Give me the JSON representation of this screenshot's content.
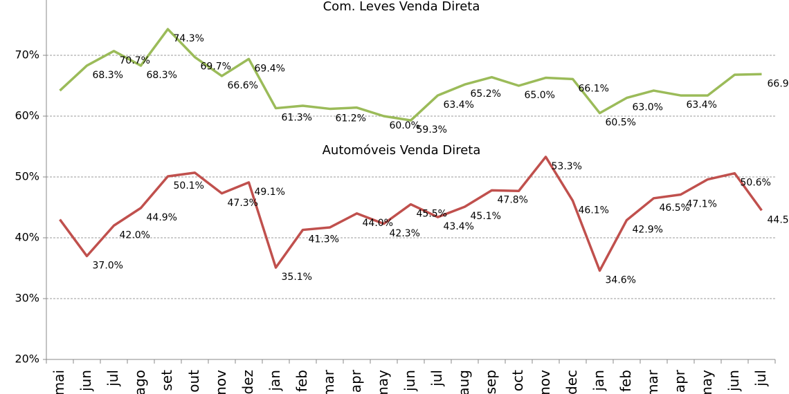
{
  "chart_data": {
    "type": "line",
    "categories": [
      "mai",
      "jun",
      "jul",
      "ago",
      "set",
      "out",
      "nov",
      "dez",
      "jan",
      "feb",
      "mar",
      "apr",
      "may",
      "jun",
      "jul",
      "aug",
      "sep",
      "oct",
      "nov",
      "dec",
      "jan",
      "feb",
      "mar",
      "apr",
      "may",
      "jun",
      "jul"
    ],
    "series": [
      {
        "name": "Com. Leves Venda Direta",
        "color": "#9bbb59",
        "values": [
          64.2,
          68.3,
          70.7,
          68.3,
          74.3,
          69.7,
          66.6,
          69.4,
          61.3,
          61.7,
          61.2,
          61.4,
          60.0,
          59.3,
          63.4,
          65.2,
          66.4,
          65.0,
          66.3,
          66.1,
          60.5,
          63.0,
          64.2,
          63.4,
          63.4,
          66.8,
          66.9
        ],
        "value_labels": [
          null,
          "68.3%",
          "70.7%",
          "68.3%",
          "74.3%",
          "69.7%",
          "66.6%",
          "69.4%",
          "61.3%",
          null,
          "61.2%",
          null,
          "60.0%",
          "59.3%",
          "63.4%",
          "65.2%",
          null,
          "65.0%",
          null,
          "66.1%",
          "60.5%",
          "63.0%",
          null,
          "63.4%",
          null,
          null,
          "66.9%"
        ]
      },
      {
        "name": "Automóveis Venda Direta",
        "color": "#c0504d",
        "values": [
          43.0,
          37.0,
          42.0,
          44.9,
          50.1,
          50.7,
          47.3,
          49.1,
          35.1,
          41.3,
          41.7,
          44.0,
          42.3,
          45.5,
          43.4,
          45.1,
          47.8,
          47.7,
          53.3,
          46.1,
          34.6,
          42.9,
          46.5,
          47.1,
          49.6,
          50.6,
          44.5
        ],
        "value_labels": [
          null,
          "37.0%",
          "42.0%",
          "44.9%",
          "50.1%",
          null,
          "47.3%",
          "49.1%",
          "35.1%",
          "41.3%",
          null,
          "44.0%",
          "42.3%",
          "45.5%",
          "43.4%",
          "45.1%",
          "47.8%",
          null,
          "53.3%",
          "46.1%",
          "34.6%",
          "42.9%",
          "46.5%",
          "47.1%",
          null,
          "50.6%",
          "44.5%"
        ]
      }
    ],
    "ylim": [
      20,
      80
    ],
    "yticks": [
      {
        "value": 20,
        "label": "20%"
      },
      {
        "value": 30,
        "label": "30%"
      },
      {
        "value": 40,
        "label": "40%"
      },
      {
        "value": 50,
        "label": "50%"
      },
      {
        "value": 60,
        "label": "60%"
      },
      {
        "value": 70,
        "label": "70%"
      }
    ],
    "grid": true
  }
}
